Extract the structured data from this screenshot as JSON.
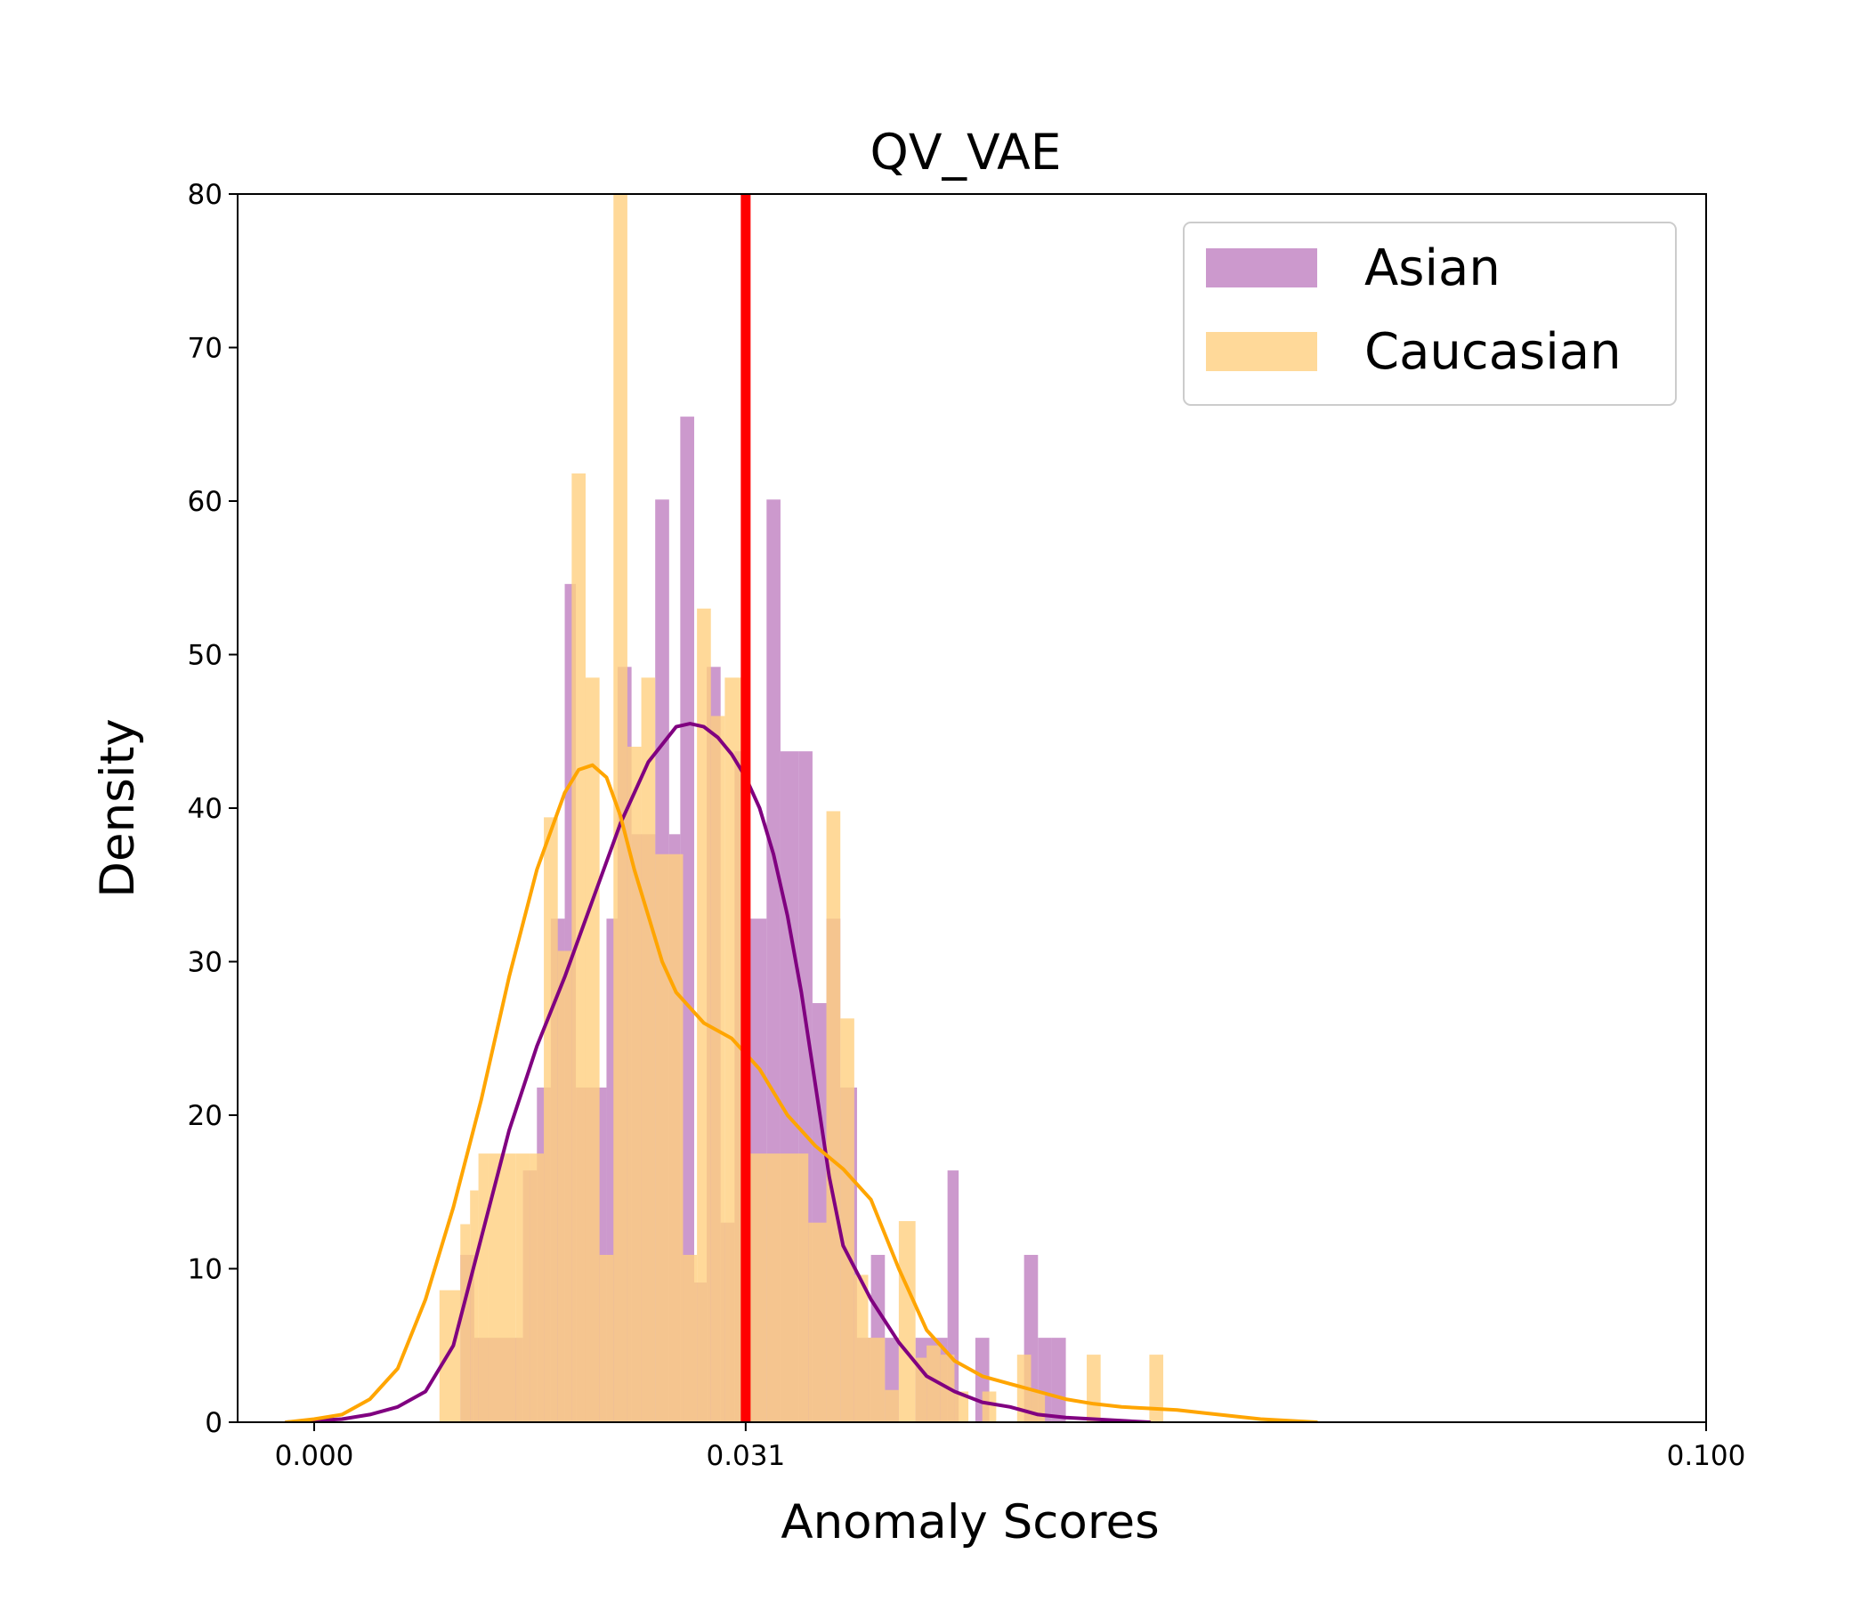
{
  "chart_data": {
    "type": "histogram",
    "title": "QV_VAE",
    "xlabel": "Anomaly Scores",
    "ylabel": "Density",
    "xlim": [
      -0.0055,
      0.1
    ],
    "ylim": [
      0,
      80
    ],
    "xticks": [
      0.0,
      0.031,
      0.1
    ],
    "xtick_labels": [
      "0.000",
      "0.031",
      "0.100"
    ],
    "yticks": [
      0,
      10,
      20,
      30,
      40,
      50,
      60,
      70,
      80
    ],
    "ytick_labels": [
      "0",
      "10",
      "20",
      "30",
      "40",
      "50",
      "60",
      "70",
      "80"
    ],
    "grid": false,
    "legend_position": "top-right",
    "threshold": {
      "x": 0.031,
      "color": "#ff0000"
    },
    "series": [
      {
        "name": "Asian",
        "bar_color": "#bf80c0",
        "bar_opacity": 0.8,
        "kde_color": "#800080",
        "histogram": [
          {
            "x0": 0.0105,
            "x1": 0.0115,
            "y": 10.9
          },
          {
            "x0": 0.0115,
            "x1": 0.0125,
            "y": 5.5
          },
          {
            "x0": 0.0125,
            "x1": 0.015,
            "y": 5.5
          },
          {
            "x0": 0.015,
            "x1": 0.016,
            "y": 16.4
          },
          {
            "x0": 0.016,
            "x1": 0.017,
            "y": 21.8
          },
          {
            "x0": 0.017,
            "x1": 0.018,
            "y": 32.8
          },
          {
            "x0": 0.018,
            "x1": 0.0188,
            "y": 54.6
          },
          {
            "x0": 0.0188,
            "x1": 0.021,
            "y": 21.8
          },
          {
            "x0": 0.021,
            "x1": 0.0218,
            "y": 32.8
          },
          {
            "x0": 0.0218,
            "x1": 0.0228,
            "y": 49.2
          },
          {
            "x0": 0.0228,
            "x1": 0.0245,
            "y": 38.3
          },
          {
            "x0": 0.0245,
            "x1": 0.0255,
            "y": 60.1
          },
          {
            "x0": 0.0255,
            "x1": 0.0263,
            "y": 38.3
          },
          {
            "x0": 0.0263,
            "x1": 0.0273,
            "y": 65.5
          },
          {
            "x0": 0.0273,
            "x1": 0.0282,
            "y": 9.1
          },
          {
            "x0": 0.0282,
            "x1": 0.0292,
            "y": 49.2
          },
          {
            "x0": 0.0292,
            "x1": 0.0302,
            "y": 13.0
          },
          {
            "x0": 0.0302,
            "x1": 0.0312,
            "y": 43.7
          },
          {
            "x0": 0.0312,
            "x1": 0.0325,
            "y": 32.8
          },
          {
            "x0": 0.0325,
            "x1": 0.0335,
            "y": 60.1
          },
          {
            "x0": 0.0335,
            "x1": 0.0348,
            "y": 43.7
          },
          {
            "x0": 0.0348,
            "x1": 0.0358,
            "y": 43.7
          },
          {
            "x0": 0.0358,
            "x1": 0.0368,
            "y": 27.3
          },
          {
            "x0": 0.0368,
            "x1": 0.0378,
            "y": 32.8
          },
          {
            "x0": 0.0378,
            "x1": 0.039,
            "y": 21.8
          },
          {
            "x0": 0.039,
            "x1": 0.04,
            "y": 5.5
          },
          {
            "x0": 0.04,
            "x1": 0.041,
            "y": 10.9
          },
          {
            "x0": 0.041,
            "x1": 0.042,
            "y": 5.5
          },
          {
            "x0": 0.0432,
            "x1": 0.0445,
            "y": 5.5
          },
          {
            "x0": 0.0445,
            "x1": 0.0455,
            "y": 5.5
          },
          {
            "x0": 0.0455,
            "x1": 0.0463,
            "y": 16.4
          },
          {
            "x0": 0.0475,
            "x1": 0.0485,
            "y": 5.5
          },
          {
            "x0": 0.051,
            "x1": 0.052,
            "y": 10.9
          },
          {
            "x0": 0.052,
            "x1": 0.053,
            "y": 5.5
          },
          {
            "x0": 0.053,
            "x1": 0.054,
            "y": 5.5
          }
        ],
        "kde": {
          "x": [
            -0.002,
            0.0,
            0.002,
            0.004,
            0.006,
            0.008,
            0.01,
            0.012,
            0.014,
            0.016,
            0.018,
            0.02,
            0.022,
            0.024,
            0.026,
            0.027,
            0.028,
            0.029,
            0.03,
            0.031,
            0.032,
            0.033,
            0.034,
            0.035,
            0.036,
            0.037,
            0.038,
            0.04,
            0.042,
            0.044,
            0.046,
            0.048,
            0.05,
            0.052,
            0.054,
            0.056,
            0.058,
            0.06
          ],
          "y": [
            0.0,
            0.1,
            0.2,
            0.5,
            1.0,
            2.0,
            5.0,
            12.0,
            19.0,
            24.5,
            29.0,
            34.0,
            39.0,
            43.0,
            45.3,
            45.5,
            45.3,
            44.6,
            43.5,
            42.0,
            40.0,
            37.0,
            33.0,
            28.0,
            22.0,
            16.0,
            11.5,
            8.0,
            5.2,
            3.0,
            2.0,
            1.3,
            1.0,
            0.5,
            0.3,
            0.2,
            0.1,
            0.0
          ]
        }
      },
      {
        "name": "Caucasian",
        "bar_color": "#ffd080",
        "bar_opacity": 0.8,
        "kde_color": "#ffa500",
        "histogram": [
          {
            "x0": 0.009,
            "x1": 0.0105,
            "y": 8.6
          },
          {
            "x0": 0.0105,
            "x1": 0.0112,
            "y": 12.9
          },
          {
            "x0": 0.0112,
            "x1": 0.0118,
            "y": 15.1
          },
          {
            "x0": 0.0118,
            "x1": 0.0125,
            "y": 17.5
          },
          {
            "x0": 0.0125,
            "x1": 0.0145,
            "y": 17.5
          },
          {
            "x0": 0.0145,
            "x1": 0.0155,
            "y": 17.5
          },
          {
            "x0": 0.0155,
            "x1": 0.0165,
            "y": 17.5
          },
          {
            "x0": 0.0165,
            "x1": 0.0175,
            "y": 39.4
          },
          {
            "x0": 0.0175,
            "x1": 0.0185,
            "y": 30.7
          },
          {
            "x0": 0.0185,
            "x1": 0.0195,
            "y": 61.8
          },
          {
            "x0": 0.0195,
            "x1": 0.0205,
            "y": 48.5
          },
          {
            "x0": 0.0205,
            "x1": 0.0215,
            "y": 10.9
          },
          {
            "x0": 0.0215,
            "x1": 0.0225,
            "y": 80.0
          },
          {
            "x0": 0.0225,
            "x1": 0.0235,
            "y": 44.0
          },
          {
            "x0": 0.0235,
            "x1": 0.0245,
            "y": 48.5
          },
          {
            "x0": 0.0245,
            "x1": 0.0265,
            "y": 37.0
          },
          {
            "x0": 0.0265,
            "x1": 0.0275,
            "y": 10.9
          },
          {
            "x0": 0.0275,
            "x1": 0.0285,
            "y": 53.0
          },
          {
            "x0": 0.0285,
            "x1": 0.0295,
            "y": 46.0
          },
          {
            "x0": 0.0295,
            "x1": 0.0308,
            "y": 48.5
          },
          {
            "x0": 0.0308,
            "x1": 0.0325,
            "y": 17.5
          },
          {
            "x0": 0.0325,
            "x1": 0.0355,
            "y": 17.5
          },
          {
            "x0": 0.0355,
            "x1": 0.0368,
            "y": 13.0
          },
          {
            "x0": 0.0368,
            "x1": 0.0378,
            "y": 39.8
          },
          {
            "x0": 0.0378,
            "x1": 0.0388,
            "y": 26.3
          },
          {
            "x0": 0.0388,
            "x1": 0.0398,
            "y": 9.6
          },
          {
            "x0": 0.0398,
            "x1": 0.041,
            "y": 5.5
          },
          {
            "x0": 0.041,
            "x1": 0.042,
            "y": 2.1
          },
          {
            "x0": 0.042,
            "x1": 0.0432,
            "y": 13.1
          },
          {
            "x0": 0.0432,
            "x1": 0.044,
            "y": 4.2
          },
          {
            "x0": 0.044,
            "x1": 0.045,
            "y": 5.0
          },
          {
            "x0": 0.045,
            "x1": 0.046,
            "y": 4.4
          },
          {
            "x0": 0.046,
            "x1": 0.047,
            "y": 2.0
          },
          {
            "x0": 0.048,
            "x1": 0.049,
            "y": 2.0
          },
          {
            "x0": 0.0505,
            "x1": 0.0515,
            "y": 4.4
          },
          {
            "x0": 0.0515,
            "x1": 0.0525,
            "y": 2.0
          },
          {
            "x0": 0.0555,
            "x1": 0.0565,
            "y": 4.4
          },
          {
            "x0": 0.06,
            "x1": 0.061,
            "y": 4.4
          }
        ],
        "kde": {
          "x": [
            -0.002,
            0.0,
            0.002,
            0.004,
            0.006,
            0.008,
            0.01,
            0.012,
            0.014,
            0.016,
            0.018,
            0.019,
            0.02,
            0.021,
            0.022,
            0.023,
            0.024,
            0.025,
            0.026,
            0.028,
            0.03,
            0.031,
            0.032,
            0.034,
            0.036,
            0.038,
            0.04,
            0.042,
            0.044,
            0.046,
            0.048,
            0.05,
            0.052,
            0.054,
            0.056,
            0.058,
            0.06,
            0.062,
            0.064,
            0.066,
            0.068,
            0.07,
            0.072
          ],
          "y": [
            0.0,
            0.2,
            0.5,
            1.5,
            3.5,
            8.0,
            14.0,
            21.0,
            29.0,
            36.0,
            41.0,
            42.5,
            42.8,
            42.0,
            39.5,
            36.0,
            33.0,
            30.0,
            28.0,
            26.0,
            25.0,
            24.0,
            23.0,
            20.0,
            18.0,
            16.5,
            14.5,
            10.0,
            6.0,
            4.0,
            3.0,
            2.5,
            2.0,
            1.5,
            1.2,
            1.0,
            0.9,
            0.8,
            0.6,
            0.4,
            0.2,
            0.1,
            0.0
          ]
        }
      }
    ]
  }
}
